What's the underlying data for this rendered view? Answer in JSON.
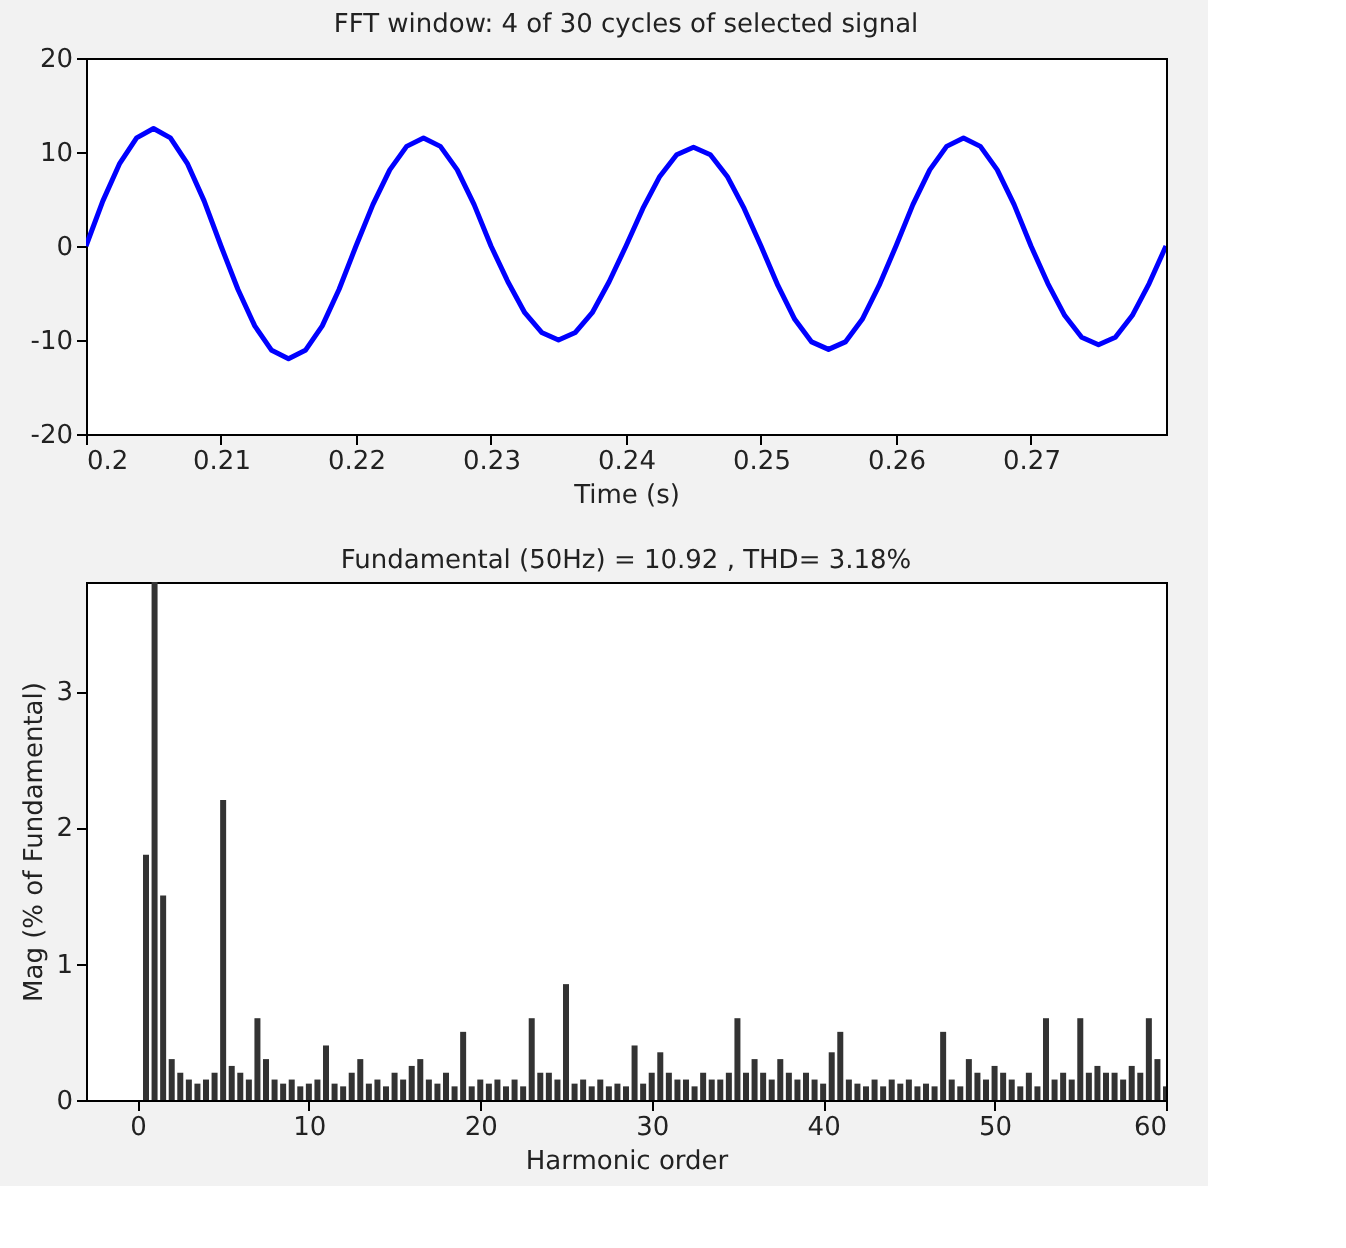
{
  "chart_data": [
    {
      "type": "line",
      "title": "FFT window: 4 of 30 cycles of selected signal",
      "xlabel": "Time (s)",
      "xlim": [
        0.2,
        0.28
      ],
      "xticks": [
        {
          "value": 0.2,
          "label": "0.2"
        },
        0.21,
        0.22,
        0.23,
        0.24,
        0.25,
        0.26,
        0.27
      ],
      "ylim": [
        -20,
        20
      ],
      "yticks": [
        -20,
        -10,
        0,
        10,
        20
      ],
      "grid": false,
      "marker": "none",
      "line_style": "solid",
      "series": [
        {
          "color": "#0000ff",
          "x": [
            0.2,
            0.20125,
            0.2025,
            0.20375,
            0.205,
            0.20625,
            0.2075,
            0.20875,
            0.21,
            0.21125,
            0.2125,
            0.21375,
            0.215,
            0.21625,
            0.2175,
            0.21875,
            0.22,
            0.22125,
            0.2225,
            0.22375,
            0.225,
            0.22625,
            0.2275,
            0.22875,
            0.23,
            0.23125,
            0.2325,
            0.23375,
            0.235,
            0.23625,
            0.2375,
            0.23875,
            0.24,
            0.24125,
            0.2425,
            0.24375,
            0.245,
            0.24625,
            0.2475,
            0.24875,
            0.25,
            0.25125,
            0.2525,
            0.25375,
            0.255,
            0.25625,
            0.2575,
            0.25875,
            0.26,
            0.26125,
            0.2625,
            0.26375,
            0.265,
            0.26625,
            0.2675,
            0.26875,
            0.27,
            0.27125,
            0.2725,
            0.27375,
            0.275,
            0.27625,
            0.2775,
            0.27875,
            0.28
          ],
          "values": [
            0,
            4.8,
            8.8,
            11.5,
            12.5,
            11.5,
            8.8,
            4.8,
            0,
            -4.6,
            -8.5,
            -11.1,
            -12,
            -11.1,
            -8.5,
            -4.6,
            0,
            4.4,
            8.1,
            10.6,
            11.5,
            10.6,
            8.1,
            4.4,
            0,
            -3.8,
            -7.1,
            -9.2,
            -10,
            -9.2,
            -7.1,
            -3.8,
            0,
            4.0,
            7.4,
            9.7,
            10.5,
            9.7,
            7.4,
            4.0,
            0,
            -4.2,
            -7.8,
            -10.2,
            -11,
            -10.2,
            -7.8,
            -4.2,
            0,
            4.4,
            8.1,
            10.6,
            11.5,
            10.6,
            8.1,
            4.4,
            0,
            -4.0,
            -7.4,
            -9.7,
            -10.5,
            -9.7,
            -7.4,
            -4.0,
            0
          ]
        }
      ]
    },
    {
      "type": "bar",
      "title": "Fundamental (50Hz) = 10.92 , THD= 3.18%",
      "xlabel": "Harmonic order",
      "ylabel": "Mag (% of Fundamental)",
      "xlim": [
        -3,
        60
      ],
      "xticks": [
        0,
        10,
        20,
        30,
        40,
        50,
        60
      ],
      "ylim": [
        0,
        3.8
      ],
      "yticks": [
        0,
        1,
        2,
        3
      ],
      "grid": false,
      "series": [
        {
          "color": "#333333",
          "x": [
            0,
            0.5,
            1,
            1.5,
            2,
            2.5,
            3,
            3.5,
            4,
            4.5,
            5,
            5.5,
            6,
            6.5,
            7,
            7.5,
            8,
            8.5,
            9,
            9.5,
            10,
            10.5,
            11,
            11.5,
            12,
            12.5,
            13,
            13.5,
            14,
            14.5,
            15,
            15.5,
            16,
            16.5,
            17,
            17.5,
            18,
            18.5,
            19,
            19.5,
            20,
            20.5,
            21,
            21.5,
            22,
            22.5,
            23,
            23.5,
            24,
            24.5,
            25,
            25.5,
            26,
            26.5,
            27,
            27.5,
            28,
            28.5,
            29,
            29.5,
            30,
            30.5,
            31,
            31.5,
            32,
            32.5,
            33,
            33.5,
            34,
            34.5,
            35,
            35.5,
            36,
            36.5,
            37,
            37.5,
            38,
            38.5,
            39,
            39.5,
            40,
            40.5,
            41,
            41.5,
            42,
            42.5,
            43,
            43.5,
            44,
            44.5,
            45,
            45.5,
            46,
            46.5,
            47,
            47.5,
            48,
            48.5,
            49,
            49.5,
            50,
            50.5,
            51,
            51.5,
            52,
            52.5,
            53,
            53.5,
            54,
            54.5,
            55,
            55.5,
            56,
            56.5,
            57,
            57.5,
            58,
            58.5,
            59,
            59.5,
            60
          ],
          "values": [
            0,
            1.8,
            3.8,
            1.5,
            0.3,
            0.2,
            0.15,
            0.12,
            0.15,
            0.2,
            2.2,
            0.25,
            0.2,
            0.15,
            0.6,
            0.3,
            0.15,
            0.12,
            0.15,
            0.1,
            0.12,
            0.15,
            0.4,
            0.12,
            0.1,
            0.2,
            0.3,
            0.12,
            0.15,
            0.1,
            0.2,
            0.15,
            0.25,
            0.3,
            0.15,
            0.12,
            0.2,
            0.1,
            0.5,
            0.1,
            0.15,
            0.12,
            0.15,
            0.1,
            0.15,
            0.1,
            0.6,
            0.2,
            0.2,
            0.15,
            0.85,
            0.12,
            0.15,
            0.1,
            0.15,
            0.1,
            0.12,
            0.1,
            0.4,
            0.12,
            0.2,
            0.35,
            0.2,
            0.15,
            0.15,
            0.1,
            0.2,
            0.15,
            0.15,
            0.2,
            0.6,
            0.2,
            0.3,
            0.2,
            0.15,
            0.3,
            0.2,
            0.15,
            0.2,
            0.15,
            0.12,
            0.35,
            0.5,
            0.15,
            0.12,
            0.1,
            0.15,
            0.1,
            0.15,
            0.12,
            0.15,
            0.1,
            0.12,
            0.1,
            0.5,
            0.15,
            0.1,
            0.3,
            0.2,
            0.15,
            0.25,
            0.2,
            0.15,
            0.1,
            0.2,
            0.1,
            0.6,
            0.15,
            0.2,
            0.15,
            0.6,
            0.2,
            0.25,
            0.2,
            0.2,
            0.15,
            0.25,
            0.2,
            0.6,
            0.3,
            0.1
          ]
        }
      ]
    }
  ]
}
